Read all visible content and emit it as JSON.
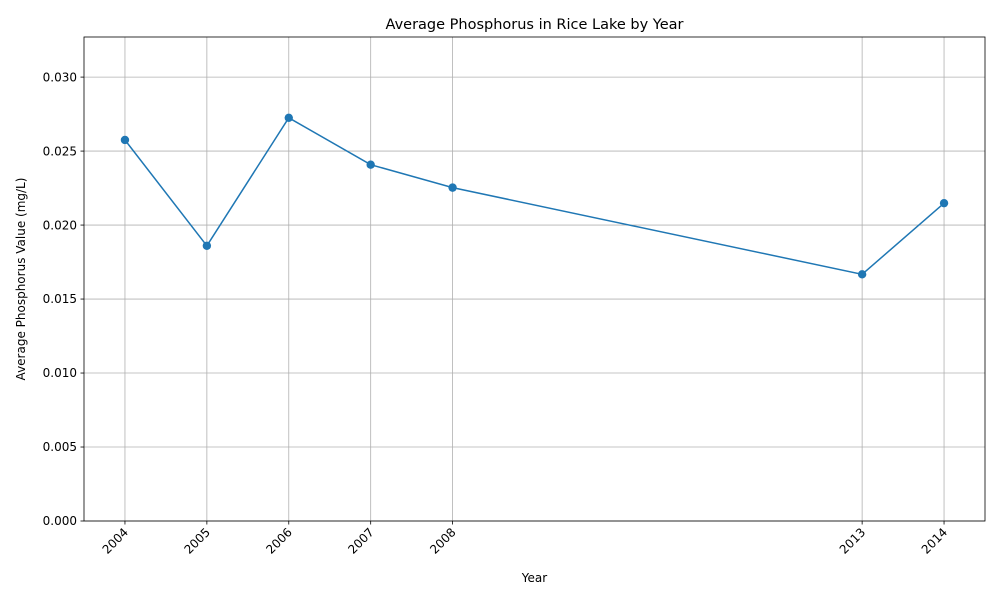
{
  "chart_data": {
    "type": "line",
    "title": "Average Phosphorus in Rice Lake by Year",
    "xlabel": "Year",
    "ylabel": "Average Phosphorus Value (mg/L)",
    "x": [
      2004,
      2005,
      2006,
      2007,
      2008,
      2013,
      2014
    ],
    "x_tick_labels": [
      "2004",
      "2005",
      "2006",
      "2007",
      "2008",
      "2013",
      "2014"
    ],
    "series": [
      {
        "values": [
          0.02575,
          0.0186,
          0.02725,
          0.02408,
          0.02253,
          0.01667,
          0.02148
        ],
        "color": "#1f77b4",
        "marker": "circle"
      }
    ],
    "y_ticks": [
      0,
      0.005,
      0.01,
      0.015,
      0.02,
      0.025,
      0.03
    ],
    "y_tick_labels": [
      "0.000",
      "0.005",
      "0.010",
      "0.015",
      "0.020",
      "0.025",
      "0.030"
    ],
    "xlim": [
      2003.5,
      2014.5
    ],
    "ylim": [
      0,
      0.03271
    ],
    "grid": true,
    "x_tick_rotation": 45
  }
}
